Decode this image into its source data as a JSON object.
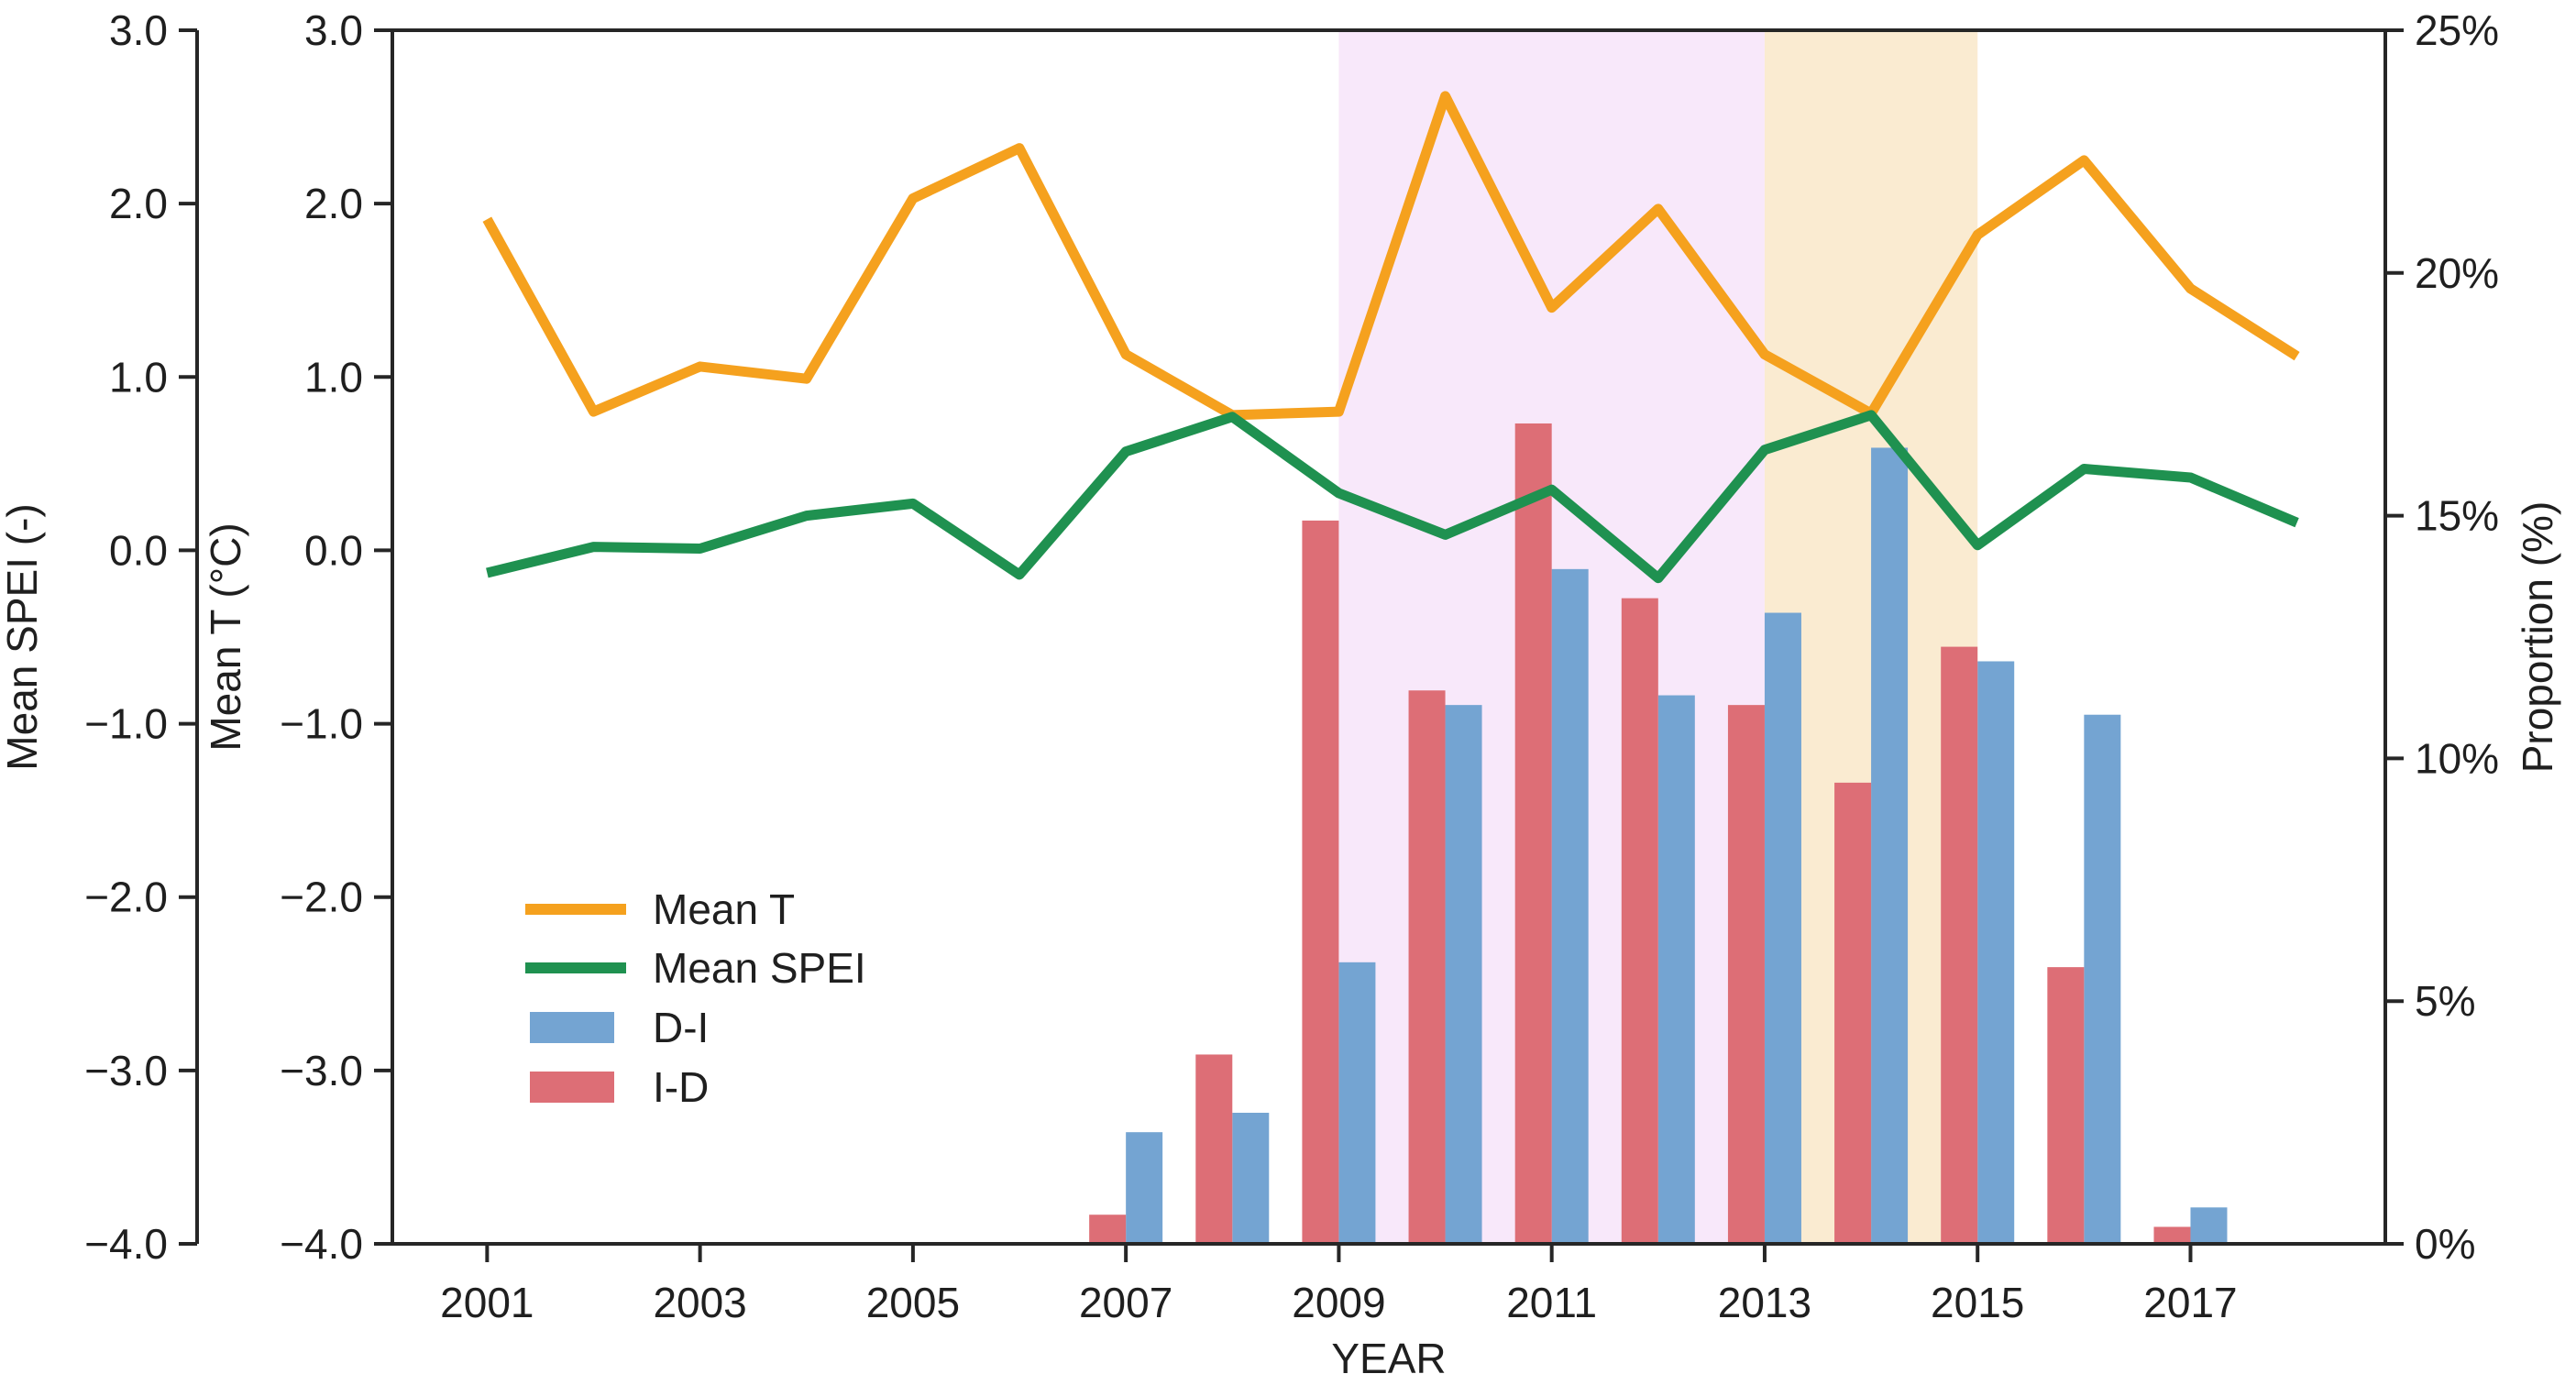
{
  "figure": {
    "xlabel": "YEAR",
    "background": "#ffffff",
    "text_color": "#1f1f1f",
    "spine_color": "#262626"
  },
  "legend": {
    "position": "lower-left-inside",
    "items": [
      {
        "label": "Mean T",
        "type": "line",
        "color": "#F5A11E"
      },
      {
        "label": "Mean SPEI",
        "type": "line",
        "color": "#1F9150"
      },
      {
        "label": "D-I",
        "type": "rect",
        "color": "#74A4D2"
      },
      {
        "label": "I-D",
        "type": "rect",
        "color": "#DD6E76"
      }
    ]
  },
  "chart_data": {
    "type": "line+bar",
    "x": [
      2001,
      2002,
      2003,
      2004,
      2005,
      2006,
      2007,
      2008,
      2009,
      2010,
      2011,
      2012,
      2013,
      2014,
      2015,
      2016,
      2017,
      2018
    ],
    "series": [
      {
        "name": "Mean T",
        "type": "line",
        "axis": "left",
        "color": "#F5A11E",
        "values": [
          1.91,
          0.8,
          1.06,
          0.99,
          2.03,
          2.32,
          1.13,
          0.78,
          0.8,
          2.62,
          1.4,
          1.97,
          1.13,
          0.79,
          1.82,
          2.25,
          1.51,
          1.12
        ]
      },
      {
        "name": "Mean SPEI",
        "type": "line",
        "axis": "left",
        "color": "#1F9150",
        "values": [
          -0.13,
          0.02,
          0.01,
          0.2,
          0.27,
          -0.14,
          0.57,
          0.77,
          0.33,
          0.09,
          0.35,
          -0.16,
          0.58,
          0.78,
          0.03,
          0.47,
          0.42,
          0.16
        ]
      },
      {
        "name": "D-I",
        "type": "bar",
        "axis": "right",
        "color": "#74A4D2",
        "values": [
          null,
          null,
          null,
          null,
          null,
          null,
          2.3,
          2.7,
          5.8,
          11.1,
          13.9,
          11.3,
          13.0,
          16.4,
          12.0,
          10.9,
          0.75,
          null
        ]
      },
      {
        "name": "I-D",
        "type": "bar",
        "axis": "right",
        "color": "#DD6E76",
        "values": [
          null,
          null,
          null,
          null,
          null,
          null,
          0.6,
          3.9,
          14.9,
          11.4,
          16.9,
          13.3,
          11.1,
          9.5,
          12.3,
          5.7,
          0.35,
          null
        ]
      }
    ],
    "shaded_regions": [
      {
        "from": 2009,
        "to": 2013,
        "color": "#F8E8FA"
      },
      {
        "from": 2013,
        "to": 2015,
        "color": "#FAEBD1"
      }
    ],
    "axes": {
      "left_outer": {
        "label": "Mean SPEI (-)",
        "range": [
          -4,
          3
        ],
        "tick_values": [
          3,
          2,
          1,
          0,
          -1,
          -2,
          -3,
          -4
        ],
        "tick_labels": [
          "3.0",
          "2.0",
          "1.0",
          "0.0",
          "−1.0",
          "−2.0",
          "−3.0",
          "−4.0"
        ]
      },
      "left_inner": {
        "label": "Mean T (°C)",
        "range": [
          -4,
          3
        ],
        "tick_values": [
          3,
          2,
          1,
          0,
          -1,
          -2,
          -3,
          -4
        ],
        "tick_labels": [
          "3.0",
          "2.0",
          "1.0",
          "0.0",
          "−1.0",
          "−2.0",
          "−3.0",
          "−4.0"
        ]
      },
      "right": {
        "label": "Proportion (%)",
        "range": [
          0,
          25
        ],
        "tick_values": [
          25,
          20,
          15,
          10,
          5,
          0
        ],
        "tick_labels": [
          "25%",
          "20%",
          "15%",
          "10%",
          "5%",
          "0%"
        ]
      },
      "x": {
        "label": "YEAR",
        "range": [
          2000.11,
          2018.83
        ],
        "tick_values": [
          2001,
          2003,
          2005,
          2007,
          2009,
          2011,
          2013,
          2015,
          2017
        ],
        "tick_labels": [
          "2001",
          "2003",
          "2005",
          "2007",
          "2009",
          "2011",
          "2013",
          "2015",
          "2017"
        ]
      }
    },
    "grid": false,
    "legend_entries": [
      "Mean T",
      "Mean SPEI",
      "D-I",
      "I-D"
    ]
  }
}
